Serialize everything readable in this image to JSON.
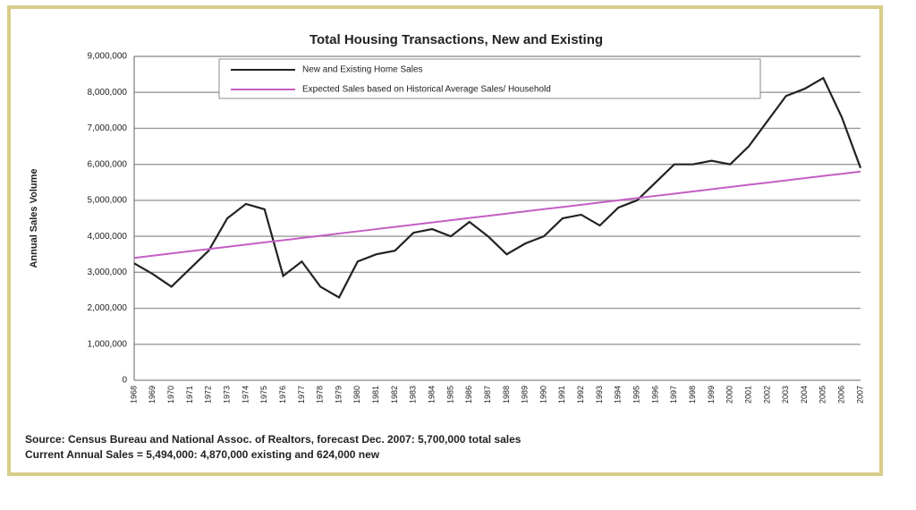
{
  "chart_data": {
    "type": "line",
    "title": "Total Housing Transactions, New and Existing",
    "y_label": "Annual Sales Volume",
    "source": "Source: Census Bureau and National Assoc. of Realtors, forecast Dec. 2007: 5,700,000 total sales",
    "note": "Current Annual Sales = 5,494,000: 4,870,000 existing and 624,000 new",
    "categories": [
      "1968",
      "1969",
      "1970",
      "1971",
      "1972",
      "1973",
      "1974",
      "1975",
      "1976",
      "1977",
      "1978",
      "1979",
      "1980",
      "1981",
      "1982",
      "1983",
      "1984",
      "1985",
      "1986",
      "1987",
      "1988",
      "1989",
      "1990",
      "1991",
      "1992",
      "1993",
      "1994",
      "1995",
      "1996",
      "1997",
      "1998",
      "1999",
      "2000",
      "2001",
      "2002",
      "2003",
      "2004",
      "2005",
      "2006",
      "2007"
    ],
    "series": [
      {
        "name": "New and Existing Home Sales",
        "color": "#222222",
        "values": [
          3250000,
          2950000,
          2600000,
          3100000,
          3600000,
          4500000,
          4900000,
          4750000,
          2900000,
          3300000,
          2600000,
          2300000,
          3300000,
          3500000,
          3600000,
          4100000,
          4200000,
          4000000,
          4400000,
          4000000,
          3500000,
          3800000,
          4000000,
          4500000,
          4600000,
          4300000,
          4800000,
          5000000,
          5500000,
          6000000,
          6000000,
          6100000,
          6000000,
          6500000,
          7200000,
          7900000,
          8100000,
          8400000,
          7300000,
          5900000
        ]
      },
      {
        "name": "Expected Sales based on Historical Average Sales/ Household",
        "color": "#c45ec4",
        "values": [
          3400000,
          3462000,
          3523000,
          3585000,
          3646000,
          3708000,
          3769000,
          3831000,
          3892000,
          3954000,
          4015000,
          4077000,
          4138000,
          4200000,
          4262000,
          4323000,
          4385000,
          4446000,
          4508000,
          4569000,
          4631000,
          4692000,
          4754000,
          4815000,
          4877000,
          4938000,
          5000000,
          5062000,
          5123000,
          5185000,
          5246000,
          5308000,
          5369000,
          5431000,
          5492000,
          5554000,
          5615000,
          5677000,
          5738000,
          5800000
        ]
      }
    ],
    "ylim": [
      0,
      9000000
    ],
    "yticks": [
      0,
      {
        "value": 1000000,
        "label": "1,000,000"
      },
      {
        "value": 2000000,
        "label": "2,000,000"
      },
      {
        "value": 3000000,
        "label": "3,000,000"
      },
      {
        "value": 4000000,
        "label": "4,000,000"
      },
      {
        "value": 5000000,
        "label": "5,000,000"
      },
      {
        "value": 6000000,
        "label": "6,000,000"
      },
      {
        "value": 7000000,
        "label": "7,000,000"
      },
      {
        "value": 8000000,
        "label": "8,000,000"
      },
      {
        "value": 9000000,
        "label": "9,000,000"
      }
    ],
    "grid": true
  }
}
